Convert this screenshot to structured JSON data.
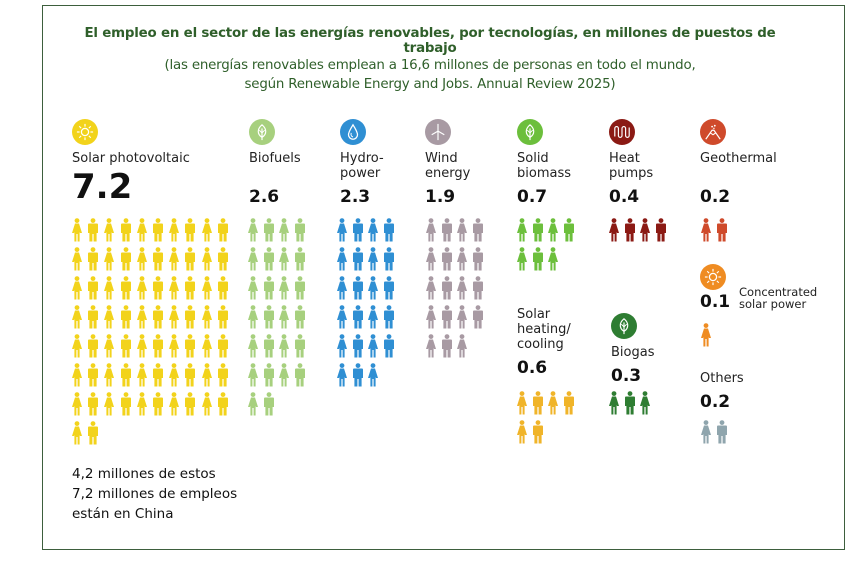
{
  "title": {
    "main": "El empleo en el sector de las energías renovables, por tecnologías, en millones de puestos de trabajo",
    "sub1": "(las energías renovables emplean a 16,6 millones de personas en todo el mundo,",
    "sub2": "según Renewable Energy and Jobs. Annual Review 2025)"
  },
  "note": "4,2 millones de estos\n7,2 millones de empleos\nestán en China",
  "chart_data": {
    "type": "pictogram",
    "title": "El empleo en el sector de las energías renovables, por tecnologías, en millones de puestos de trabajo",
    "unit": "millions of jobs",
    "icon_value": 0.1,
    "total": 16.6,
    "categories": [
      "Solar photovoltaic",
      "Biofuels",
      "Hydropower",
      "Wind energy",
      "Solid biomass",
      "Heat pumps",
      "Geothermal",
      "Concentrated solar power",
      "Solar heating/cooling",
      "Biogas",
      "Others"
    ],
    "values": [
      7.2,
      2.6,
      2.3,
      1.9,
      0.7,
      0.4,
      0.2,
      0.1,
      0.6,
      0.3,
      0.2
    ],
    "series": [
      {
        "key": "pv",
        "label": "Solar photovoltaic",
        "value_label": "7.2",
        "value": 7.2,
        "color": "#f2d31b",
        "icon": "sun-icon"
      },
      {
        "key": "biofuels",
        "label": "Biofuels",
        "value_label": "2.6",
        "value": 2.6,
        "color": "#a7d07e",
        "icon": "leaf-icon"
      },
      {
        "key": "hydro",
        "label": "Hydro-\npower",
        "value_label": "2.3",
        "value": 2.3,
        "color": "#2f8fd3",
        "icon": "water-drop-icon"
      },
      {
        "key": "wind",
        "label": "Wind\nenergy",
        "value_label": "1.9",
        "value": 1.9,
        "color": "#a89aa3",
        "icon": "wind-turbine-icon"
      },
      {
        "key": "solidbio",
        "label": "Solid\nbiomass",
        "value_label": "0.7",
        "value": 0.7,
        "color": "#6cbf3c",
        "icon": "leaf-icon"
      },
      {
        "key": "heatpumps",
        "label": "Heat\npumps",
        "value_label": "0.4",
        "value": 0.4,
        "color": "#8b1a14",
        "icon": "heat-coil-icon"
      },
      {
        "key": "geo",
        "label": "Geothermal",
        "value_label": "0.2",
        "value": 0.2,
        "color": "#cf4a2b",
        "icon": "volcano-icon"
      },
      {
        "key": "csp",
        "label": "Concentrated\nsolar power",
        "value_label": "0.1",
        "value": 0.1,
        "color": "#ef8c22",
        "icon": "sun-icon"
      },
      {
        "key": "shc",
        "label": "Solar\nheating/\ncooling",
        "value_label": "0.6",
        "value": 0.6,
        "color": "#f0b429",
        "icon": "none"
      },
      {
        "key": "biogas",
        "label": "Biogas",
        "value_label": "0.3",
        "value": 0.3,
        "color": "#2e7d32",
        "icon": "leaf-icon"
      },
      {
        "key": "others",
        "label": "Others",
        "value_label": "0.2",
        "value": 0.2,
        "color": "#8fa5ad",
        "icon": "none"
      }
    ]
  }
}
